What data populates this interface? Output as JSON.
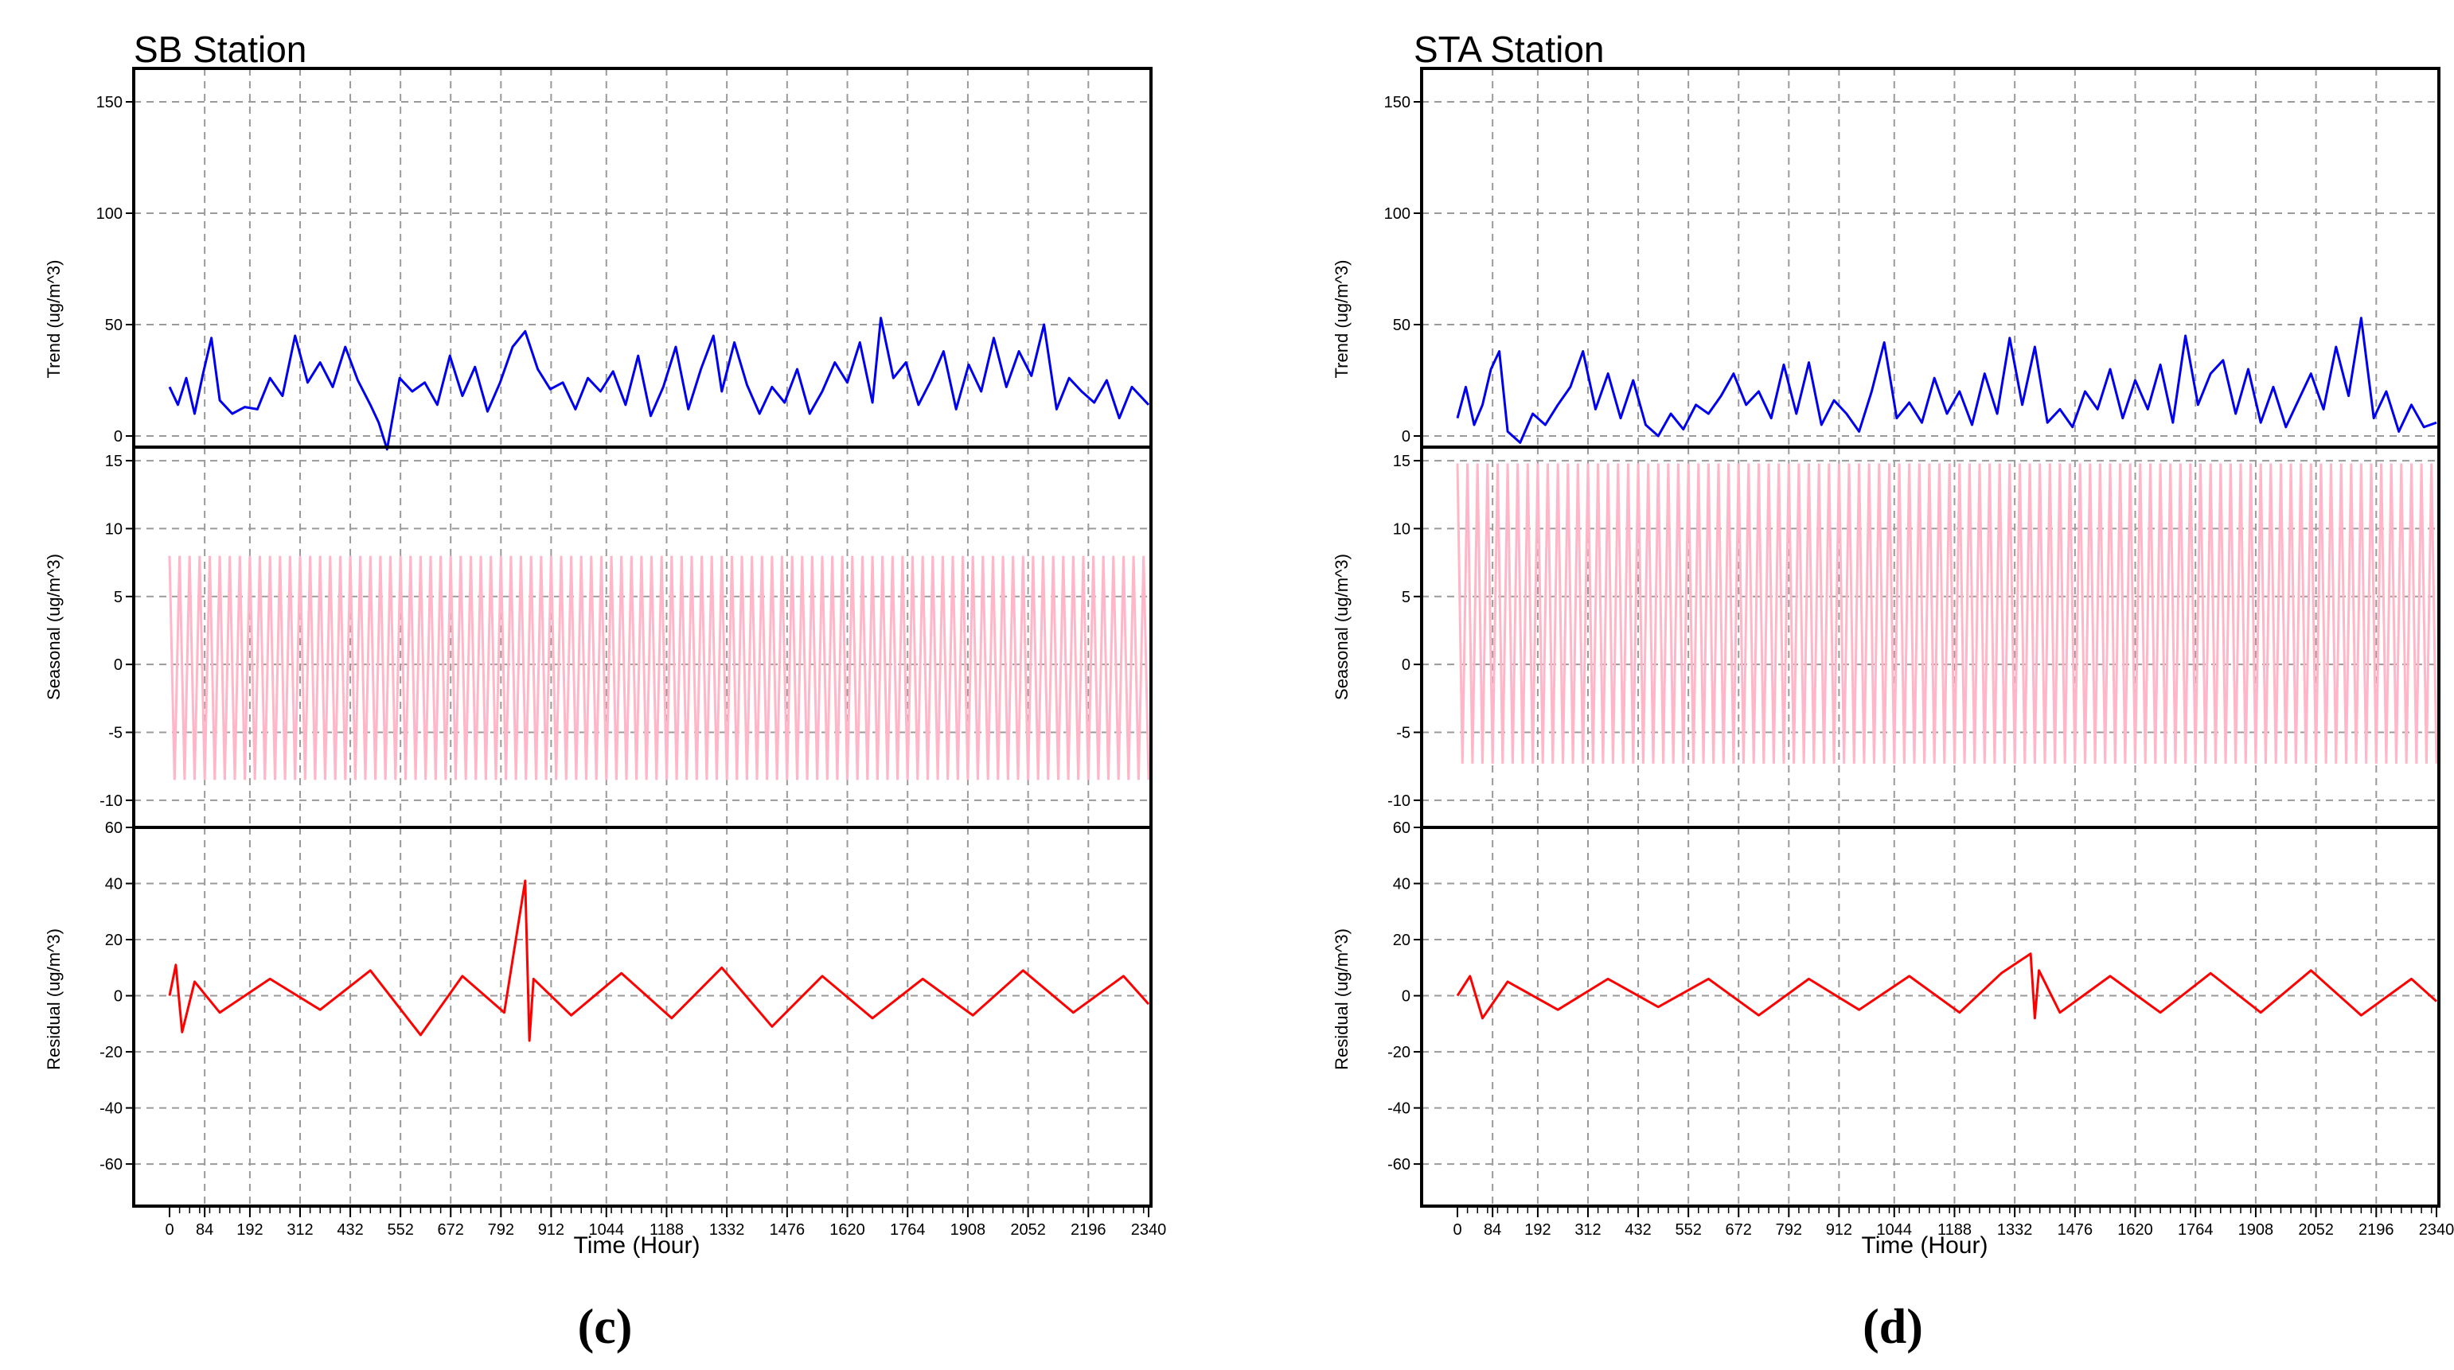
{
  "chart_data": [
    {
      "type": "line",
      "title": "SB Station",
      "caption": "(c)",
      "xlabel": "Time (Hour)",
      "xlim": [
        0,
        2340
      ],
      "x_ticks": [
        0,
        84,
        192,
        312,
        432,
        552,
        672,
        792,
        912,
        1044,
        1188,
        1332,
        1476,
        1620,
        1764,
        1908,
        2052,
        2196,
        2340
      ],
      "subplots": [
        {
          "name": "trend",
          "ylabel": "Trend (ug/m^3)",
          "color": "#0000ee",
          "ylim": [
            -5,
            165
          ],
          "y_ticks": [
            0,
            50,
            100,
            150
          ],
          "x": [
            0,
            20,
            40,
            60,
            80,
            100,
            120,
            150,
            180,
            210,
            240,
            270,
            300,
            330,
            360,
            390,
            420,
            450,
            480,
            500,
            520,
            550,
            580,
            610,
            640,
            670,
            700,
            730,
            760,
            790,
            820,
            850,
            880,
            910,
            940,
            970,
            1000,
            1030,
            1060,
            1090,
            1120,
            1150,
            1180,
            1210,
            1240,
            1270,
            1300,
            1320,
            1350,
            1380,
            1410,
            1440,
            1470,
            1500,
            1530,
            1560,
            1590,
            1620,
            1650,
            1680,
            1700,
            1730,
            1760,
            1790,
            1820,
            1850,
            1880,
            1910,
            1940,
            1970,
            2000,
            2030,
            2060,
            2090,
            2120,
            2150,
            2180,
            2210,
            2240,
            2270,
            2300,
            2340
          ],
          "values": [
            22,
            14,
            26,
            10,
            28,
            44,
            16,
            10,
            13,
            12,
            26,
            18,
            45,
            24,
            33,
            22,
            40,
            25,
            14,
            6,
            -6,
            26,
            20,
            24,
            14,
            36,
            18,
            31,
            11,
            24,
            40,
            47,
            30,
            21,
            24,
            12,
            26,
            20,
            29,
            14,
            36,
            9,
            22,
            40,
            12,
            30,
            45,
            20,
            42,
            23,
            10,
            22,
            15,
            30,
            10,
            20,
            33,
            24,
            42,
            15,
            53,
            26,
            33,
            14,
            25,
            38,
            12,
            32,
            20,
            44,
            22,
            38,
            27,
            50,
            12,
            26,
            20,
            15,
            25,
            8,
            22,
            14
          ]
        },
        {
          "name": "seasonal",
          "ylabel": "Seasonal (ug/m^3)",
          "color": "#ffb6c8",
          "ylim": [
            -12,
            16
          ],
          "y_ticks": [
            -10,
            -5,
            0,
            5,
            10,
            15
          ],
          "period_hours": 24,
          "max": 8,
          "min": -8.5
        },
        {
          "name": "residual",
          "ylabel": "Residual (ug/m^3)",
          "color": "#ff0000",
          "ylim": [
            -75,
            60
          ],
          "y_ticks": [
            -60,
            -40,
            -20,
            0,
            20,
            40,
            60
          ],
          "x": [
            0,
            15,
            30,
            60,
            120,
            240,
            360,
            480,
            600,
            700,
            800,
            850,
            860,
            870,
            960,
            1080,
            1200,
            1320,
            1440,
            1560,
            1680,
            1800,
            1920,
            2040,
            2160,
            2280,
            2340
          ],
          "values": [
            0,
            11,
            -13,
            5,
            -6,
            6,
            -5,
            9,
            -14,
            7,
            -6,
            41,
            -16,
            6,
            -7,
            8,
            -8,
            10,
            -11,
            7,
            -8,
            6,
            -7,
            9,
            -6,
            7,
            -3
          ]
        }
      ]
    },
    {
      "type": "line",
      "title": "STA Station",
      "caption": "(d)",
      "xlabel": "Time (Hour)",
      "xlim": [
        0,
        2340
      ],
      "x_ticks": [
        0,
        84,
        192,
        312,
        432,
        552,
        672,
        792,
        912,
        1044,
        1188,
        1332,
        1476,
        1620,
        1764,
        1908,
        2052,
        2196,
        2340
      ],
      "subplots": [
        {
          "name": "trend",
          "ylabel": "Trend (ug/m^3)",
          "color": "#0000ee",
          "ylim": [
            -5,
            165
          ],
          "y_ticks": [
            0,
            50,
            100,
            150
          ],
          "x": [
            0,
            20,
            40,
            60,
            80,
            100,
            120,
            150,
            180,
            210,
            240,
            270,
            300,
            330,
            360,
            390,
            420,
            450,
            480,
            510,
            540,
            570,
            600,
            630,
            660,
            690,
            720,
            750,
            780,
            810,
            840,
            870,
            900,
            930,
            960,
            990,
            1020,
            1050,
            1080,
            1110,
            1140,
            1170,
            1200,
            1230,
            1260,
            1290,
            1320,
            1350,
            1380,
            1410,
            1440,
            1470,
            1500,
            1530,
            1560,
            1590,
            1620,
            1650,
            1680,
            1710,
            1740,
            1770,
            1800,
            1830,
            1860,
            1890,
            1920,
            1950,
            1980,
            2010,
            2040,
            2070,
            2100,
            2130,
            2160,
            2190,
            2220,
            2250,
            2280,
            2310,
            2340
          ],
          "values": [
            8,
            22,
            5,
            14,
            30,
            38,
            2,
            -3,
            10,
            5,
            14,
            22,
            38,
            12,
            28,
            8,
            25,
            5,
            0,
            10,
            3,
            14,
            10,
            18,
            28,
            14,
            20,
            8,
            32,
            10,
            33,
            5,
            16,
            10,
            2,
            20,
            42,
            8,
            15,
            6,
            26,
            10,
            20,
            5,
            28,
            10,
            44,
            14,
            40,
            6,
            12,
            4,
            20,
            12,
            30,
            8,
            25,
            12,
            32,
            6,
            45,
            14,
            28,
            34,
            10,
            30,
            6,
            22,
            4,
            16,
            28,
            12,
            40,
            18,
            53,
            8,
            20,
            2,
            14,
            4,
            6
          ]
        },
        {
          "name": "seasonal",
          "ylabel": "Seasonal (ug/m^3)",
          "color": "#ffb6c8",
          "ylim": [
            -12,
            16
          ],
          "y_ticks": [
            -10,
            -5,
            0,
            5,
            10,
            15
          ],
          "period_hours": 24,
          "max": 14.8,
          "min": -7.3
        },
        {
          "name": "residual",
          "ylabel": "Residual (ug/m^3)",
          "color": "#ff0000",
          "ylim": [
            -75,
            60
          ],
          "y_ticks": [
            -60,
            -40,
            -20,
            0,
            20,
            40,
            60
          ],
          "x": [
            0,
            30,
            60,
            120,
            240,
            360,
            480,
            600,
            720,
            840,
            960,
            1080,
            1200,
            1300,
            1370,
            1380,
            1390,
            1440,
            1560,
            1680,
            1800,
            1920,
            2040,
            2160,
            2280,
            2340
          ],
          "values": [
            0,
            7,
            -8,
            5,
            -5,
            6,
            -4,
            6,
            -7,
            6,
            -5,
            7,
            -6,
            8,
            15,
            -8,
            9,
            -6,
            7,
            -6,
            8,
            -6,
            9,
            -7,
            6,
            -2
          ]
        }
      ]
    }
  ]
}
